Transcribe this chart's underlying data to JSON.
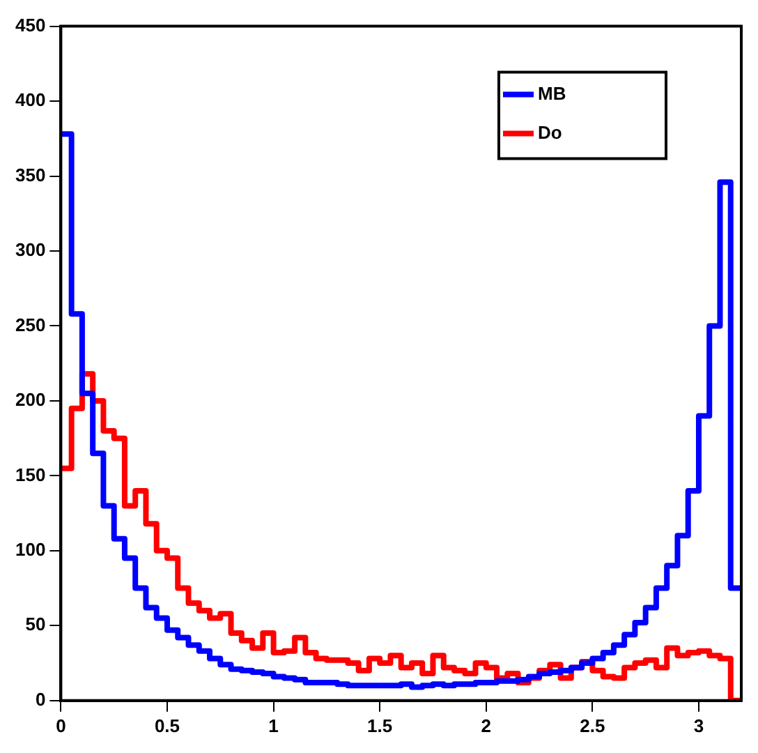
{
  "chart_data": {
    "type": "histogram",
    "bins": [
      0,
      0.05,
      0.1,
      0.15,
      0.2,
      0.25,
      0.3,
      0.35,
      0.4,
      0.45,
      0.5,
      0.55,
      0.6,
      0.65,
      0.7,
      0.75,
      0.8,
      0.85,
      0.9,
      0.95,
      1,
      1.05,
      1.1,
      1.15,
      1.2,
      1.25,
      1.3,
      1.35,
      1.4,
      1.45,
      1.5,
      1.55,
      1.6,
      1.65,
      1.7,
      1.75,
      1.8,
      1.85,
      1.9,
      1.95,
      2,
      2.05,
      2.1,
      2.15,
      2.2,
      2.25,
      2.3,
      2.35,
      2.4,
      2.45,
      2.5,
      2.55,
      2.6,
      2.65,
      2.7,
      2.75,
      2.8,
      2.85,
      2.9,
      2.95,
      3,
      3.05,
      3.1,
      3.15,
      3.2
    ],
    "series": [
      {
        "name": "MB",
        "color": "#0000ff",
        "values": [
          378,
          258,
          205,
          165,
          130,
          108,
          95,
          75,
          62,
          55,
          47,
          42,
          37,
          33,
          28,
          24,
          21,
          20,
          19,
          18,
          16,
          15,
          14,
          12,
          12,
          12,
          11,
          10,
          10,
          10,
          10,
          10,
          11,
          9,
          10,
          11,
          10,
          11,
          11,
          12,
          12,
          13,
          13,
          14,
          16,
          18,
          19,
          20,
          22,
          25,
          28,
          32,
          37,
          44,
          52,
          62,
          75,
          90,
          110,
          140,
          190,
          250,
          346,
          75
        ]
      },
      {
        "name": "Do",
        "color": "#ff0000",
        "values": [
          155,
          195,
          218,
          200,
          180,
          175,
          130,
          140,
          118,
          100,
          95,
          75,
          65,
          60,
          55,
          58,
          45,
          40,
          35,
          45,
          32,
          33,
          42,
          32,
          28,
          27,
          27,
          25,
          20,
          28,
          25,
          30,
          22,
          25,
          18,
          30,
          22,
          20,
          18,
          25,
          22,
          15,
          18,
          12,
          15,
          20,
          24,
          15,
          22,
          26,
          20,
          16,
          15,
          22,
          25,
          27,
          22,
          35,
          30,
          32,
          33,
          30,
          28,
          0
        ]
      }
    ],
    "xlim": [
      0,
      3.2
    ],
    "xticks": [
      0,
      0.5,
      1,
      1.5,
      2,
      2.5,
      3
    ],
    "ylim": [
      0,
      450
    ],
    "yticks": [
      0,
      50,
      100,
      150,
      200,
      250,
      300,
      350,
      400,
      450
    ],
    "grid": false,
    "legend": "top right"
  }
}
